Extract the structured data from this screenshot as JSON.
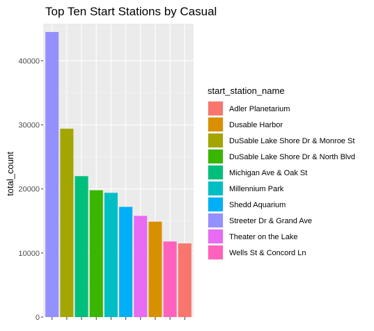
{
  "chart_data": {
    "type": "bar",
    "title": "Top Ten Start Stations by Casual",
    "xlabel": "",
    "ylabel": "total_count",
    "ylim": [
      0,
      45800
    ],
    "yticks": [
      0,
      10000,
      20000,
      30000,
      40000
    ],
    "ytick_labels": [
      "0",
      "10000",
      "20000",
      "30000",
      "40000"
    ],
    "xtick_labels_visible": false,
    "grid": true,
    "legend": {
      "title": "start_station_name",
      "position": "right",
      "entries": [
        {
          "label": "Adler Planetarium",
          "color": "#F8766D"
        },
        {
          "label": "Dusable Harbor",
          "color": "#D89000"
        },
        {
          "label": "DuSable Lake Shore Dr & Monroe St",
          "color": "#A3A500"
        },
        {
          "label": "DuSable Lake Shore Dr & North Blvd",
          "color": "#39B600"
        },
        {
          "label": "Michigan Ave & Oak St",
          "color": "#00BF7D"
        },
        {
          "label": "Millennium Park",
          "color": "#00BFC4"
        },
        {
          "label": "Shedd Aquarium",
          "color": "#00B0F6"
        },
        {
          "label": "Streeter Dr & Grand Ave",
          "color": "#9590FF"
        },
        {
          "label": "Theater on the Lake",
          "color": "#E76BF3"
        },
        {
          "label": "Wells St & Concord Ln",
          "color": "#FF62BC"
        }
      ]
    },
    "bars": [
      {
        "station": "Streeter Dr & Grand Ave",
        "value": 44500,
        "color": "#9590FF"
      },
      {
        "station": "DuSable Lake Shore Dr & Monroe St",
        "value": 29400,
        "color": "#A3A500"
      },
      {
        "station": "Michigan Ave & Oak St",
        "value": 22000,
        "color": "#00BF7D"
      },
      {
        "station": "DuSable Lake Shore Dr & North Blvd",
        "value": 19800,
        "color": "#39B600"
      },
      {
        "station": "Millennium Park",
        "value": 19400,
        "color": "#00BFC4"
      },
      {
        "station": "Shedd Aquarium",
        "value": 17200,
        "color": "#00B0F6"
      },
      {
        "station": "Theater on the Lake",
        "value": 15800,
        "color": "#E76BF3"
      },
      {
        "station": "Dusable Harbor",
        "value": 14900,
        "color": "#D89000"
      },
      {
        "station": "Wells St & Concord Ln",
        "value": 11800,
        "color": "#FF62BC"
      },
      {
        "station": "Adler Planetarium",
        "value": 11500,
        "color": "#F8766D"
      }
    ]
  }
}
